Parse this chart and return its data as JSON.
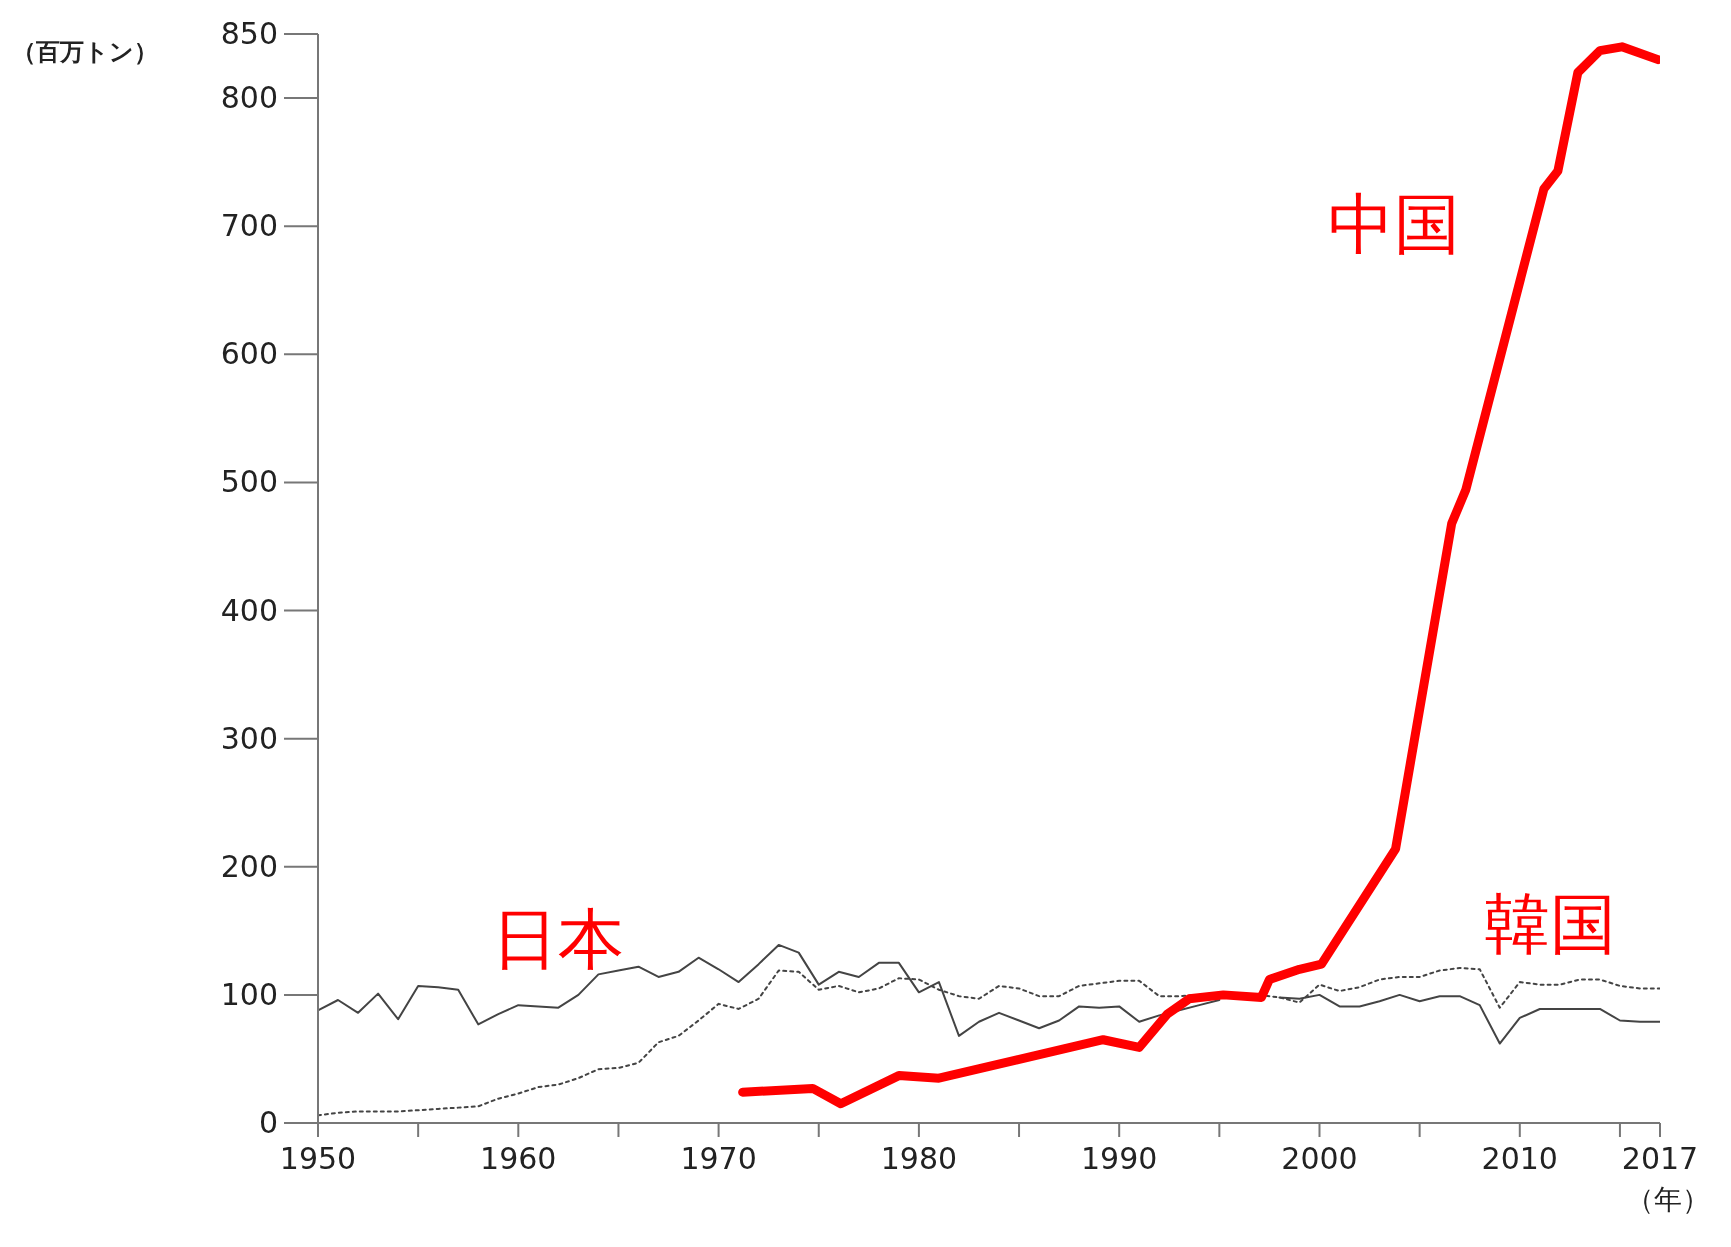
{
  "chart_data": {
    "type": "line",
    "ylabel": "（百万トン）",
    "xlabel": "（年）",
    "xlim": [
      1950,
      2017
    ],
    "xticks": [
      1950,
      {
        "value": 1955,
        "label": null
      },
      1960,
      {
        "value": 1965,
        "label": null
      },
      1970,
      {
        "value": 1975,
        "label": null
      },
      1980,
      {
        "value": 1985,
        "label": null
      },
      1990,
      {
        "value": 1995,
        "label": null
      },
      2000,
      {
        "value": 2005,
        "label": null
      },
      2010,
      {
        "value": 2015,
        "label": null
      },
      2017
    ],
    "ylim": [
      0,
      850
    ],
    "yticks": [
      0,
      100,
      200,
      300,
      400,
      500,
      600,
      700,
      800,
      850
    ],
    "marker": "none",
    "series": [
      {
        "name": "日本",
        "color": "#444444",
        "line_style": "solid",
        "x": [
          1950,
          1951,
          1952,
          1953,
          1954,
          1955,
          1956,
          1957,
          1958,
          1959,
          1960,
          1961,
          1962,
          1963,
          1964,
          1965,
          1966,
          1967,
          1968,
          1969,
          1970,
          1971,
          1972,
          1973,
          1974,
          1975,
          1976,
          1977,
          1978,
          1979,
          1980,
          1981,
          1982,
          1983,
          1984,
          1985,
          1986,
          1987,
          1988,
          1989,
          1990,
          1991,
          1992,
          1993,
          1994,
          1995,
          1996,
          1997,
          1998,
          1999,
          2000,
          2001,
          2002,
          2003,
          2004,
          2005,
          2006,
          2007,
          2008,
          2009,
          2010,
          2011,
          2012,
          2013,
          2014,
          2015,
          2016,
          2017
        ],
        "values": [
          88,
          96,
          86,
          101,
          81,
          107,
          106,
          104,
          77,
          85,
          92,
          91,
          90,
          100,
          116,
          119,
          122,
          114,
          118,
          129,
          120,
          110,
          124,
          139,
          133,
          108,
          118,
          114,
          125,
          125,
          102,
          110,
          68,
          79,
          86,
          80,
          74,
          80,
          91,
          90,
          91,
          79,
          84,
          88,
          92,
          96,
          null,
          null,
          98,
          97,
          100,
          91,
          91,
          95,
          100,
          95,
          99,
          99,
          92,
          62,
          82,
          89,
          89,
          89,
          89,
          80,
          79,
          79
        ]
      },
      {
        "name": "韓国",
        "color": "#444444",
        "line_style": "dotted",
        "x": [
          1950,
          1951,
          1952,
          1953,
          1954,
          1955,
          1956,
          1957,
          1958,
          1959,
          1960,
          1961,
          1962,
          1963,
          1964,
          1965,
          1966,
          1967,
          1968,
          1969,
          1970,
          1971,
          1972,
          1973,
          1974,
          1975,
          1976,
          1977,
          1978,
          1979,
          1980,
          1981,
          1982,
          1983,
          1984,
          1985,
          1986,
          1987,
          1988,
          1989,
          1990,
          1991,
          1992,
          1993,
          1994,
          1995,
          1996,
          1997,
          1998,
          1999,
          2000,
          2001,
          2002,
          2003,
          2004,
          2005,
          2006,
          2007,
          2008,
          2009,
          2010,
          2011,
          2012,
          2013,
          2014,
          2015,
          2016,
          2017
        ],
        "values": [
          6,
          8,
          9,
          9,
          9,
          10,
          11,
          12,
          13,
          19,
          23,
          28,
          30,
          35,
          42,
          43,
          47,
          63,
          68,
          80,
          93,
          89,
          97,
          119,
          118,
          104,
          107,
          102,
          105,
          113,
          112,
          104,
          99,
          97,
          107,
          105,
          99,
          99,
          107,
          109,
          111,
          111,
          99,
          99,
          100,
          100,
          null,
          100,
          98,
          94,
          108,
          103,
          106,
          112,
          114,
          114,
          119,
          121,
          120,
          90,
          110,
          108,
          108,
          112,
          112,
          107,
          105,
          105
        ]
      },
      {
        "name": "中国",
        "color": "#ff0000",
        "line_style": "solid",
        "x": [
          1971.2,
          1974.7,
          1976.1,
          1979,
          1981,
          1989.2,
          1991,
          1992.4,
          1993.5,
          1995.2,
          1997.1,
          1997.5,
          1999,
          2000.1,
          2003.8,
          2006.6,
          2007.3,
          2011.2,
          2011.9,
          2012.9,
          2014,
          2015.1,
          2016.9
        ],
        "values": [
          24,
          27,
          15,
          37,
          35,
          65,
          59,
          85,
          97,
          100,
          98,
          112,
          120,
          124,
          214,
          468,
          494,
          729,
          743,
          820,
          837,
          840,
          830
        ]
      }
    ]
  }
}
